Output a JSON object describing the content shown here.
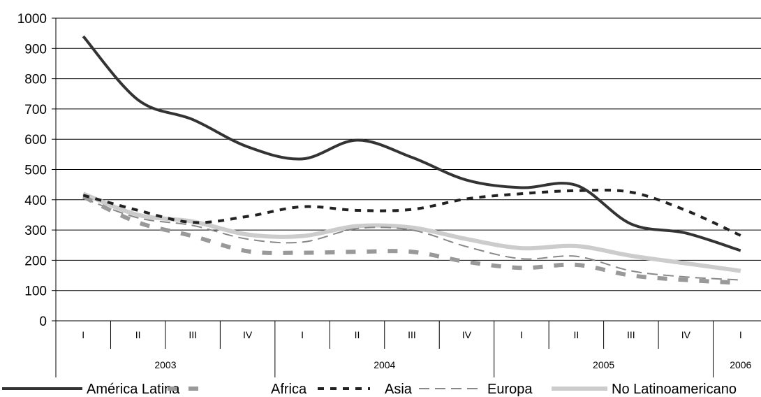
{
  "chart_data": {
    "type": "line",
    "title": "",
    "xlabel": "",
    "ylabel": "",
    "ylim": [
      0,
      1000
    ],
    "yticks": [
      "0",
      "100",
      "200",
      "300",
      "400",
      "500",
      "600",
      "700",
      "800",
      "900",
      "1000"
    ],
    "grid": true,
    "legend_position": "bottom",
    "x": [
      "2003-I",
      "2003-II",
      "2003-III",
      "2003-IV",
      "2004-I",
      "2004-II",
      "2004-III",
      "2004-IV",
      "2005-I",
      "2005-II",
      "2005-III",
      "2005-IV",
      "2006-I"
    ],
    "quarters": [
      "I",
      "II",
      "III",
      "IV",
      "I",
      "II",
      "III",
      "IV",
      "I",
      "II",
      "III",
      "IV",
      "I"
    ],
    "years": [
      {
        "label": "2003",
        "span": 4
      },
      {
        "label": "2004",
        "span": 4
      },
      {
        "label": "2005",
        "span": 4
      },
      {
        "label": "2006",
        "span": 1
      }
    ],
    "series": [
      {
        "name": "América Latina",
        "color": "#333333",
        "style": "solid-thick",
        "values": [
          940,
          730,
          665,
          575,
          535,
          597,
          540,
          465,
          440,
          448,
          320,
          290,
          232
        ]
      },
      {
        "name": "Africa",
        "color": "#999999",
        "style": "dashed-thick",
        "values": [
          410,
          325,
          280,
          230,
          225,
          228,
          228,
          195,
          175,
          185,
          150,
          135,
          125
        ]
      },
      {
        "name": "Asia",
        "color": "#222222",
        "style": "dashed-medium",
        "values": [
          415,
          365,
          325,
          345,
          377,
          365,
          368,
          403,
          420,
          430,
          425,
          365,
          282
        ]
      },
      {
        "name": "Europa",
        "color": "#888888",
        "style": "dashed-thin",
        "values": [
          405,
          340,
          315,
          270,
          260,
          305,
          300,
          245,
          205,
          213,
          165,
          145,
          135
        ]
      },
      {
        "name": "No Latinoamericano",
        "color": "#cccccc",
        "style": "solid-light",
        "values": [
          420,
          350,
          328,
          285,
          280,
          313,
          308,
          270,
          240,
          247,
          215,
          190,
          165
        ]
      }
    ]
  }
}
